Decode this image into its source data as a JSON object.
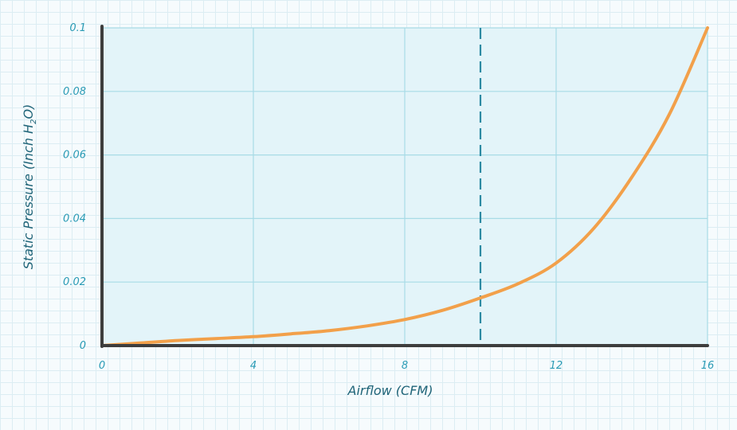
{
  "chart_data": {
    "type": "line",
    "xlabel": "Airflow (CFM)",
    "ylabel_main": "Static Pressure (Inch H",
    "ylabel_sub": "2",
    "ylabel_end": "O)",
    "xlim": [
      0,
      16
    ],
    "ylim": [
      0,
      0.1
    ],
    "x_ticks": [
      0,
      4,
      8,
      12,
      16
    ],
    "x_tick_labels": [
      "0",
      "4",
      "8",
      "12",
      "16"
    ],
    "y_ticks": [
      0,
      0.02,
      0.04,
      0.06,
      0.08,
      0.1
    ],
    "y_tick_labels": [
      "0",
      "0.02",
      "0.04",
      "0.06",
      "0.08",
      "0.1"
    ],
    "grid": true,
    "series": [
      {
        "x": [
          0,
          1,
          2,
          3,
          4,
          5,
          6,
          7,
          8,
          9,
          10,
          11,
          12,
          13,
          14,
          15,
          16
        ],
        "values": [
          0,
          0.0008,
          0.0016,
          0.0022,
          0.0028,
          0.0037,
          0.0047,
          0.0062,
          0.0082,
          0.0111,
          0.015,
          0.0195,
          0.026,
          0.037,
          0.053,
          0.073,
          0.1
        ],
        "color": "#f2a04a"
      }
    ],
    "reference_line": {
      "x": 10,
      "style": "dashed",
      "color": "#2d8aa3"
    },
    "colors": {
      "plot_bg": "#e3f4f9",
      "plot_grid": "#a8dbe6",
      "axis": "#3d3d3d",
      "tick_text": "#2a9bb5",
      "title_text": "#1f6478"
    }
  }
}
